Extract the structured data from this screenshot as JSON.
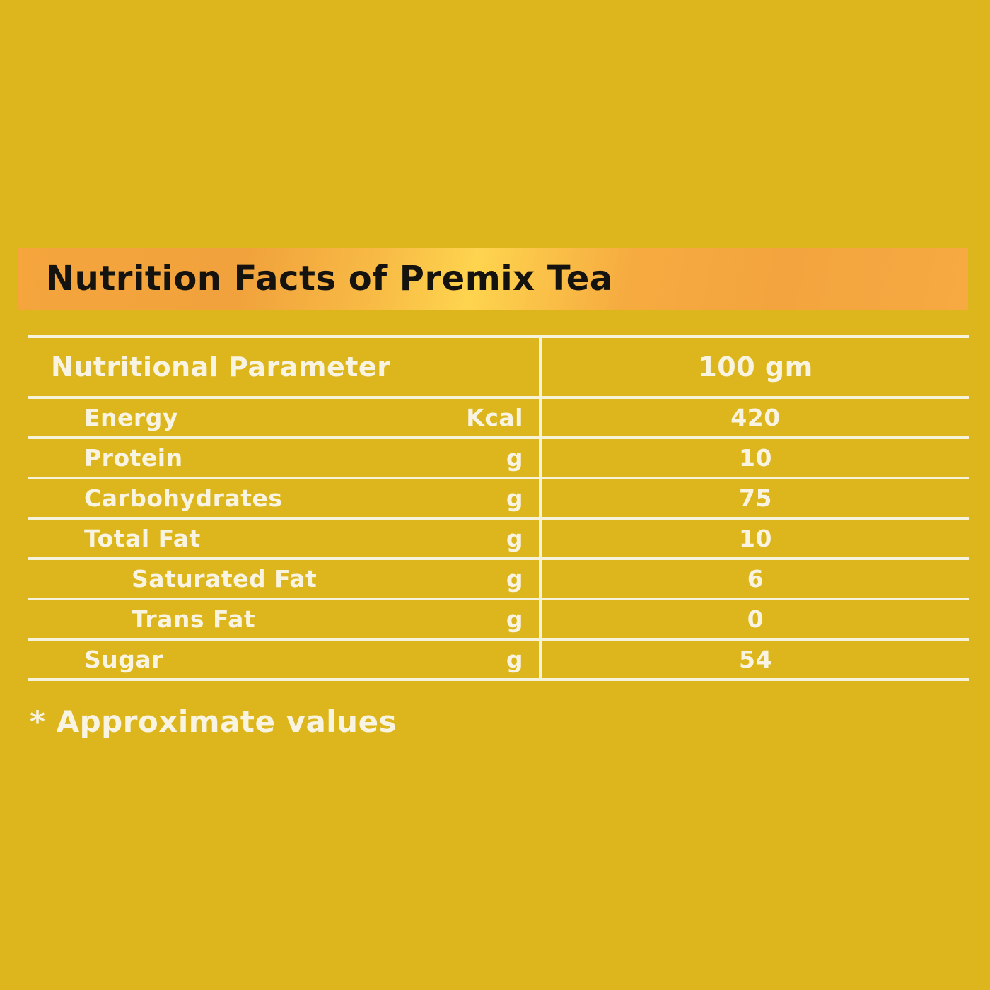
{
  "page": {
    "background_color": "#dcb61c"
  },
  "banner": {
    "title": "Nutrition Facts of Premix Tea",
    "text_color": "#15130f",
    "gradient_colors": [
      "#f5a53c",
      "#fed44e",
      "#f6aa41"
    ]
  },
  "table": {
    "line_color": "#f7f2da",
    "text_color": "#f9f4e2",
    "header": {
      "parameter_label": "Nutritional Parameter",
      "amount_label": "100 gm"
    },
    "rows": [
      {
        "label": "Energy",
        "unit": "Kcal",
        "value": "420"
      },
      {
        "label": "Protein",
        "unit": "g",
        "value": "10"
      },
      {
        "label": "Carbohydrates",
        "unit": "g",
        "value": "75"
      },
      {
        "label": "Total Fat",
        "unit": "g",
        "value": "10"
      },
      {
        "label": "Saturated Fat",
        "unit": "g",
        "value": "6"
      },
      {
        "label": "Trans Fat",
        "unit": "g",
        "value": "0"
      },
      {
        "label": "Sugar",
        "unit": "g",
        "value": "54"
      }
    ]
  },
  "footnote": {
    "text": "* Approximate values"
  }
}
